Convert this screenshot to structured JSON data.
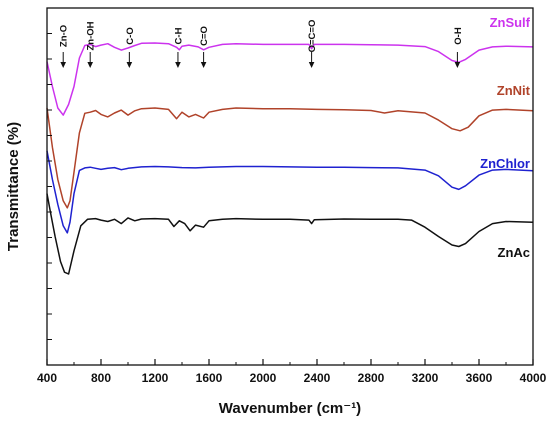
{
  "chart_data": {
    "type": "line",
    "xlabel": "Wavenumber (cm⁻¹)",
    "ylabel": "Transmittance (%)",
    "xlim": [
      400,
      4000
    ],
    "xticks": [
      400,
      800,
      1200,
      1600,
      2000,
      2400,
      2800,
      3200,
      3600,
      4000
    ],
    "grid": false,
    "y_units": "arbitrary (stacked, 0 = bottom of axis, 100 = top of axis)",
    "band_annotations": [
      {
        "label": "Zn-O",
        "x": 520
      },
      {
        "label": "Zn-OH",
        "x": 720
      },
      {
        "label": "C-O",
        "x": 1010
      },
      {
        "label": "C-H",
        "x": 1370
      },
      {
        "label": "C=O",
        "x": 1560
      },
      {
        "label": "O=C=O",
        "x": 2360
      },
      {
        "label": "O-H",
        "x": 3440
      }
    ],
    "series": [
      {
        "name": "ZnSulf",
        "color": "#cc33ee",
        "points": [
          [
            400,
            85
          ],
          [
            440,
            78
          ],
          [
            480,
            72
          ],
          [
            520,
            70
          ],
          [
            560,
            73
          ],
          [
            600,
            78
          ],
          [
            640,
            86
          ],
          [
            680,
            89.5
          ],
          [
            720,
            89.8
          ],
          [
            760,
            89.2
          ],
          [
            800,
            89.6
          ],
          [
            850,
            90
          ],
          [
            900,
            89
          ],
          [
            950,
            88.2
          ],
          [
            1000,
            88.8
          ],
          [
            1050,
            89.5
          ],
          [
            1100,
            90.1
          ],
          [
            1200,
            90.2
          ],
          [
            1300,
            90
          ],
          [
            1360,
            89
          ],
          [
            1380,
            88.3
          ],
          [
            1400,
            89.3
          ],
          [
            1450,
            89.6
          ],
          [
            1520,
            89.1
          ],
          [
            1560,
            88.3
          ],
          [
            1600,
            89
          ],
          [
            1700,
            89.8
          ],
          [
            1800,
            90
          ],
          [
            2000,
            89.8
          ],
          [
            2200,
            89.8
          ],
          [
            2340,
            89.8
          ],
          [
            2360,
            88.6
          ],
          [
            2380,
            89.8
          ],
          [
            2600,
            89.8
          ],
          [
            2800,
            89.7
          ],
          [
            3000,
            89.6
          ],
          [
            3200,
            89.2
          ],
          [
            3300,
            87.8
          ],
          [
            3400,
            85.3
          ],
          [
            3450,
            84.8
          ],
          [
            3500,
            85.6
          ],
          [
            3600,
            88.2
          ],
          [
            3700,
            89.1
          ],
          [
            3800,
            89.3
          ],
          [
            4000,
            89.1
          ]
        ]
      },
      {
        "name": "ZnNit",
        "color": "#b0432a",
        "points": [
          [
            400,
            72
          ],
          [
            440,
            61
          ],
          [
            480,
            52
          ],
          [
            520,
            46
          ],
          [
            550,
            44
          ],
          [
            570,
            46
          ],
          [
            600,
            54
          ],
          [
            640,
            65
          ],
          [
            680,
            70.5
          ],
          [
            720,
            70.8
          ],
          [
            760,
            71.3
          ],
          [
            800,
            70.2
          ],
          [
            850,
            69.5
          ],
          [
            900,
            70.6
          ],
          [
            950,
            71.4
          ],
          [
            1000,
            70
          ],
          [
            1050,
            71.2
          ],
          [
            1100,
            71.8
          ],
          [
            1200,
            72
          ],
          [
            1300,
            71.6
          ],
          [
            1360,
            69
          ],
          [
            1400,
            70.8
          ],
          [
            1450,
            69.5
          ],
          [
            1500,
            70.2
          ],
          [
            1560,
            69.2
          ],
          [
            1600,
            70.8
          ],
          [
            1700,
            71.6
          ],
          [
            1800,
            72
          ],
          [
            2000,
            71.8
          ],
          [
            2200,
            71.8
          ],
          [
            2400,
            71.6
          ],
          [
            2600,
            71.5
          ],
          [
            2800,
            71.3
          ],
          [
            2900,
            70.6
          ],
          [
            3000,
            71.2
          ],
          [
            3200,
            70.6
          ],
          [
            3300,
            68.6
          ],
          [
            3400,
            66.2
          ],
          [
            3460,
            65.6
          ],
          [
            3520,
            66.6
          ],
          [
            3600,
            69.8
          ],
          [
            3700,
            71.4
          ],
          [
            3800,
            71.6
          ],
          [
            4000,
            71.2
          ]
        ]
      },
      {
        "name": "ZnChlor",
        "color": "#1f22d0",
        "points": [
          [
            400,
            60
          ],
          [
            440,
            52
          ],
          [
            480,
            45
          ],
          [
            520,
            39
          ],
          [
            550,
            37
          ],
          [
            570,
            40
          ],
          [
            600,
            48
          ],
          [
            640,
            54.5
          ],
          [
            680,
            55.2
          ],
          [
            720,
            55.4
          ],
          [
            760,
            55.1
          ],
          [
            800,
            54.8
          ],
          [
            850,
            55.1
          ],
          [
            900,
            55.3
          ],
          [
            950,
            54.7
          ],
          [
            1000,
            55.1
          ],
          [
            1100,
            55.5
          ],
          [
            1200,
            55.6
          ],
          [
            1300,
            55.5
          ],
          [
            1400,
            55.3
          ],
          [
            1500,
            55.2
          ],
          [
            1600,
            55.4
          ],
          [
            1800,
            55.6
          ],
          [
            2000,
            55.6
          ],
          [
            2200,
            55.5
          ],
          [
            2400,
            55.4
          ],
          [
            2600,
            55.4
          ],
          [
            2800,
            55.3
          ],
          [
            3000,
            55.2
          ],
          [
            3200,
            54.6
          ],
          [
            3300,
            53
          ],
          [
            3400,
            49.8
          ],
          [
            3450,
            49.2
          ],
          [
            3500,
            50.2
          ],
          [
            3600,
            53.2
          ],
          [
            3700,
            54.6
          ],
          [
            3800,
            54.8
          ],
          [
            4000,
            54.4
          ]
        ]
      },
      {
        "name": "ZnAc",
        "color": "#111111",
        "points": [
          [
            400,
            48
          ],
          [
            430,
            42
          ],
          [
            460,
            36
          ],
          [
            500,
            29
          ],
          [
            530,
            26
          ],
          [
            560,
            25.5
          ],
          [
            600,
            32
          ],
          [
            650,
            39
          ],
          [
            700,
            40.8
          ],
          [
            760,
            41
          ],
          [
            800,
            40.6
          ],
          [
            850,
            40.2
          ],
          [
            900,
            40.8
          ],
          [
            950,
            39.6
          ],
          [
            1000,
            41.2
          ],
          [
            1050,
            40.4
          ],
          [
            1100,
            40.9
          ],
          [
            1200,
            41
          ],
          [
            1300,
            40.8
          ],
          [
            1340,
            38.8
          ],
          [
            1380,
            40.4
          ],
          [
            1420,
            39.6
          ],
          [
            1460,
            37.6
          ],
          [
            1500,
            39.2
          ],
          [
            1560,
            38.6
          ],
          [
            1600,
            40.4
          ],
          [
            1700,
            40.8
          ],
          [
            1800,
            41
          ],
          [
            2000,
            40.8
          ],
          [
            2200,
            40.8
          ],
          [
            2340,
            40.6
          ],
          [
            2360,
            39.6
          ],
          [
            2380,
            40.7
          ],
          [
            2600,
            40.9
          ],
          [
            2800,
            40.8
          ],
          [
            3000,
            40.8
          ],
          [
            3100,
            40.6
          ],
          [
            3200,
            38.6
          ],
          [
            3300,
            36
          ],
          [
            3400,
            33.6
          ],
          [
            3450,
            33.2
          ],
          [
            3500,
            34
          ],
          [
            3600,
            37.4
          ],
          [
            3700,
            39.6
          ],
          [
            3800,
            40.2
          ],
          [
            4000,
            40
          ]
        ]
      }
    ]
  }
}
